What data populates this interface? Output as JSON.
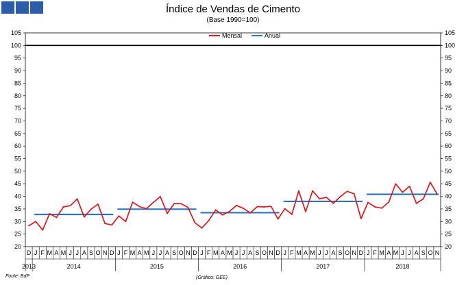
{
  "header": {
    "title": "Índice de Vendas de Cimento",
    "subtitle": "(Base 1990=100)"
  },
  "footer": {
    "source": "Fonte: BdP",
    "credit": "(Gráfico: GEE)"
  },
  "chart_data": {
    "type": "line",
    "title": "Índice de Vendas de Cimento",
    "subtitle": "(Base 1990=100)",
    "ylim": [
      20,
      105
    ],
    "yticks": [
      20,
      25,
      30,
      35,
      40,
      45,
      50,
      55,
      60,
      65,
      70,
      75,
      80,
      85,
      90,
      95,
      100,
      105
    ],
    "reference_line": 100,
    "month_labels": [
      "D",
      "J",
      "F",
      "M",
      "A",
      "M",
      "J",
      "J",
      "A",
      "S",
      "O",
      "N",
      "D",
      "J",
      "F",
      "M",
      "A",
      "M",
      "J",
      "J",
      "A",
      "S",
      "O",
      "N",
      "D",
      "J",
      "F",
      "M",
      "A",
      "M",
      "J",
      "J",
      "A",
      "S",
      "O",
      "N",
      "D",
      "J",
      "F",
      "M",
      "A",
      "M",
      "J",
      "J",
      "A",
      "S",
      "O",
      "N",
      "D",
      "J",
      "F",
      "M",
      "A",
      "M",
      "J",
      "J",
      "A",
      "S",
      "O",
      "N"
    ],
    "year_labels": [
      "2013",
      "2014",
      "2015",
      "2016",
      "2017",
      "2018"
    ],
    "legend": [
      {
        "name": "Mensal",
        "color": "#e8141c"
      },
      {
        "name": "Anual",
        "color": "#2e75b6"
      }
    ],
    "legend_position": "top-center",
    "series": [
      {
        "name": "Mensal",
        "color": "#e8141c",
        "values": [
          28.3,
          30.0,
          26.6,
          33.1,
          31.6,
          35.8,
          36.3,
          39.0,
          31.8,
          34.9,
          36.9,
          29.2,
          28.6,
          32.2,
          30.0,
          37.7,
          35.9,
          35.1,
          37.6,
          39.9,
          33.2,
          37.1,
          37.1,
          35.6,
          29.5,
          27.4,
          30.4,
          34.6,
          32.6,
          34.0,
          36.4,
          35.2,
          33.4,
          35.9,
          35.8,
          36.0,
          31.0,
          35.1,
          32.8,
          42.2,
          33.9,
          42.2,
          39.0,
          39.6,
          37.2,
          39.9,
          42.0,
          41.0,
          31.1,
          37.6,
          35.8,
          35.3,
          37.7,
          45.0,
          41.6,
          44.0,
          37.2,
          39.0,
          45.6,
          40.9
        ]
      },
      {
        "name": "Anual",
        "color": "#2e75b6",
        "segments": [
          {
            "year": "2014",
            "value": 32.8
          },
          {
            "year": "2015",
            "value": 34.9
          },
          {
            "year": "2016",
            "value": 33.5
          },
          {
            "year": "2017",
            "value": 38.0
          },
          {
            "year": "2018",
            "value": 40.8
          }
        ]
      }
    ]
  }
}
